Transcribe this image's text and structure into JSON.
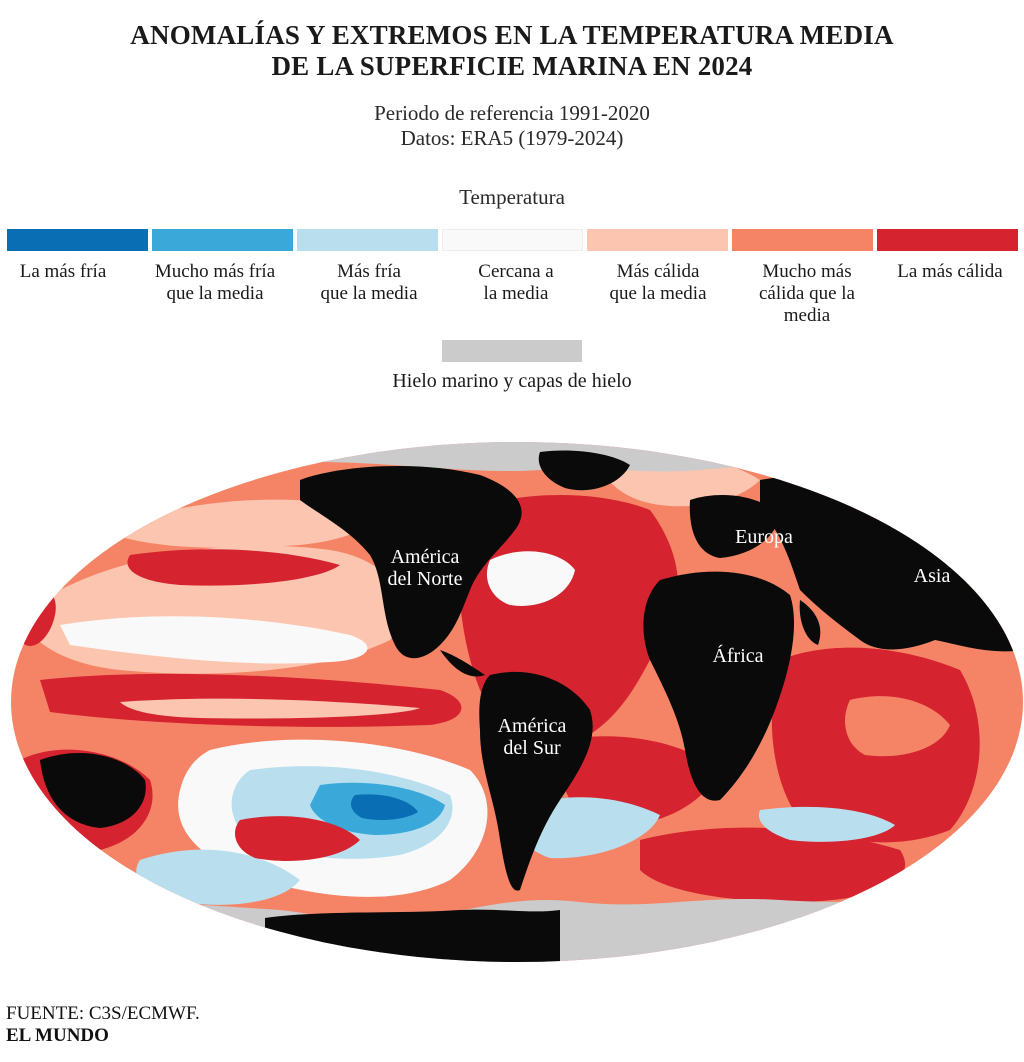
{
  "title": {
    "line1": "ANOMALÍAS Y EXTREMOS EN LA TEMPERATURA MEDIA",
    "line2": "DE LA SUPERFICIE MARINA EN 2024"
  },
  "subtitle": {
    "line1": "Periodo de referencia 1991-2020",
    "line2": "Datos: ERA5 (1979-2024)"
  },
  "legend": {
    "title": "Temperatura",
    "categories": [
      {
        "color": "#0a6eb4",
        "line1": "La más fría",
        "line2": "",
        "line3": ""
      },
      {
        "color": "#3aa8d8",
        "line1": "Mucho más fría",
        "line2": "que la media",
        "line3": ""
      },
      {
        "color": "#b9dfef",
        "line1": "Más fría",
        "line2": "que la media",
        "line3": ""
      },
      {
        "color": "#f9f9f9",
        "line1": "Cercana a",
        "line2": "la media",
        "line3": ""
      },
      {
        "color": "#fbc5b0",
        "line1": "Más cálida",
        "line2": "que la media",
        "line3": ""
      },
      {
        "color": "#f58466",
        "line1": "Mucho más",
        "line2": "cálida que la",
        "line3": "media"
      },
      {
        "color": "#d52430",
        "line1": "La más cálida",
        "line2": "",
        "line3": ""
      }
    ],
    "ice": {
      "color": "#cbcbcb",
      "label": "Hielo marino y capas de hielo"
    }
  },
  "map": {
    "labels": {
      "north_america": [
        "América",
        "del Norte"
      ],
      "europe": "Europa",
      "asia": "Asia",
      "africa": "África",
      "south_america": [
        "América",
        "del Sur"
      ]
    },
    "land_color": "#0a0a0a",
    "label_color": "#ffffff"
  },
  "footer": {
    "source": "FUENTE:  C3S/ECMWF.",
    "brand": "EL MUNDO"
  }
}
